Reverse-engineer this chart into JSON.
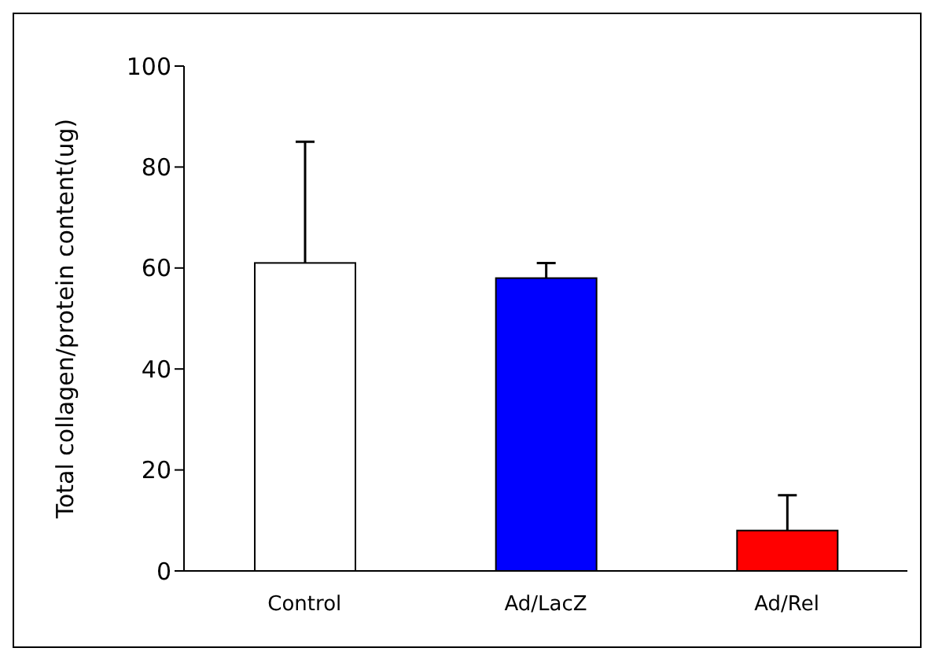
{
  "chart_data": {
    "type": "bar",
    "ylabel": "Total collagen/protein content(ug)",
    "categories": [
      "Control",
      "Ad/LacZ",
      "Ad/Rel"
    ],
    "values": [
      61,
      58,
      8
    ],
    "colors": [
      "#ffffff",
      "#0000ff",
      "#ff0000"
    ],
    "errors": [
      [
        61,
        85
      ],
      [
        58,
        61
      ],
      [
        8,
        15
      ]
    ],
    "ylim": [
      0,
      100
    ],
    "yticks": [
      0,
      20,
      40,
      60,
      80,
      100
    ],
    "grid": false,
    "legend": false
  }
}
